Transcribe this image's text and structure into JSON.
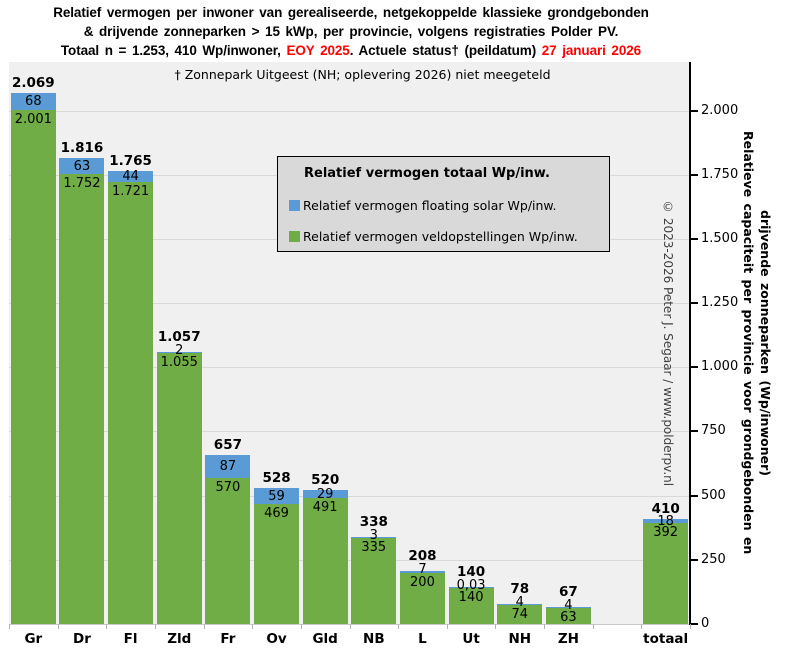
{
  "title": {
    "line1": "Relatief vermogen per inwoner van gerealiseerde, netgekoppelde klassieke grondgebonden",
    "line2": "& drijvende zonneparken > 15 kWp, per provincie, volgens registraties Polder PV.",
    "line3_parts": [
      {
        "text": "Totaal n = 1.253, 410 Wp/inwoner, ",
        "color": "black"
      },
      {
        "text": "EOY 2025",
        "color": "red"
      },
      {
        "text": ". Actuele status† (peildatum) ",
        "color": "black"
      },
      {
        "text": "27 januari 2026",
        "color": "red"
      }
    ]
  },
  "annotation": "† Zonnepark Uitgeest (NH;  oplevering 2026) niet meegeteld",
  "legend": {
    "title": "Relatief vermogen totaal Wp/inw.",
    "items": [
      {
        "label": "Relatief vermogen floating solar Wp/inw.",
        "color": "#5B9BD5"
      },
      {
        "label": "Relatief vermogen veldopstellingen Wp/inw.",
        "color": "#70AD47"
      }
    ]
  },
  "copyright": "© 2023-2026  Peter J. Segaar / www.polderpv.nl",
  "y_axis": {
    "title_line1": "Relatieve capaciteit per provincie voor grondgebonden en",
    "title_line2": "drijvende zonneparken (Wp/inwoner)",
    "tick_labels": [
      "2.000",
      "1.750",
      "1.500",
      "1.250",
      "1.000",
      "750",
      "500",
      "250",
      "0"
    ],
    "tick_values": [
      2000,
      1750,
      1500,
      1250,
      1000,
      750,
      500,
      250,
      0
    ]
  },
  "chart_data": {
    "type": "bar",
    "stacked": true,
    "grid": true,
    "legend_position": "inside-top-center",
    "ylim": [
      0,
      2187
    ],
    "ylabel": "Relatieve capaciteit per provincie voor grondgebonden en drijvende zonneparken (Wp/inwoner)",
    "categories": [
      "Gr",
      "Dr",
      "Fl",
      "Zld",
      "Fr",
      "Ov",
      "Gld",
      "NB",
      "L",
      "Ut",
      "NH",
      "ZH",
      "totaal"
    ],
    "series": [
      {
        "name": "Relatief vermogen veldopstellingen Wp/inw.",
        "color": "#70AD47",
        "values": [
          2001,
          1752,
          1721,
          1055,
          570,
          469,
          491,
          335,
          200,
          140,
          74,
          63,
          392
        ],
        "labels": [
          "2.001",
          "1.752",
          "1.721",
          "1.055",
          "570",
          "469",
          "491",
          "335",
          "200",
          "140",
          "74",
          "63",
          "392"
        ]
      },
      {
        "name": "Relatief vermogen floating solar Wp/inw.",
        "color": "#5B9BD5",
        "values": [
          68,
          63,
          44,
          2,
          87,
          59,
          29,
          3,
          7,
          0.03,
          4,
          4,
          18
        ],
        "labels": [
          "68",
          "63",
          "44",
          "2",
          "87",
          "59",
          "29",
          "3",
          "7",
          "0,03",
          "4",
          "4",
          "18"
        ]
      }
    ],
    "totals": [
      2069,
      1816,
      1765,
      1057,
      657,
      528,
      520,
      338,
      208,
      140,
      78,
      67,
      410
    ],
    "total_labels": [
      "2.069",
      "1.816",
      "1.765",
      "1.057",
      "657",
      "528",
      "520",
      "338",
      "208",
      "140",
      "78",
      "67",
      "410"
    ]
  }
}
